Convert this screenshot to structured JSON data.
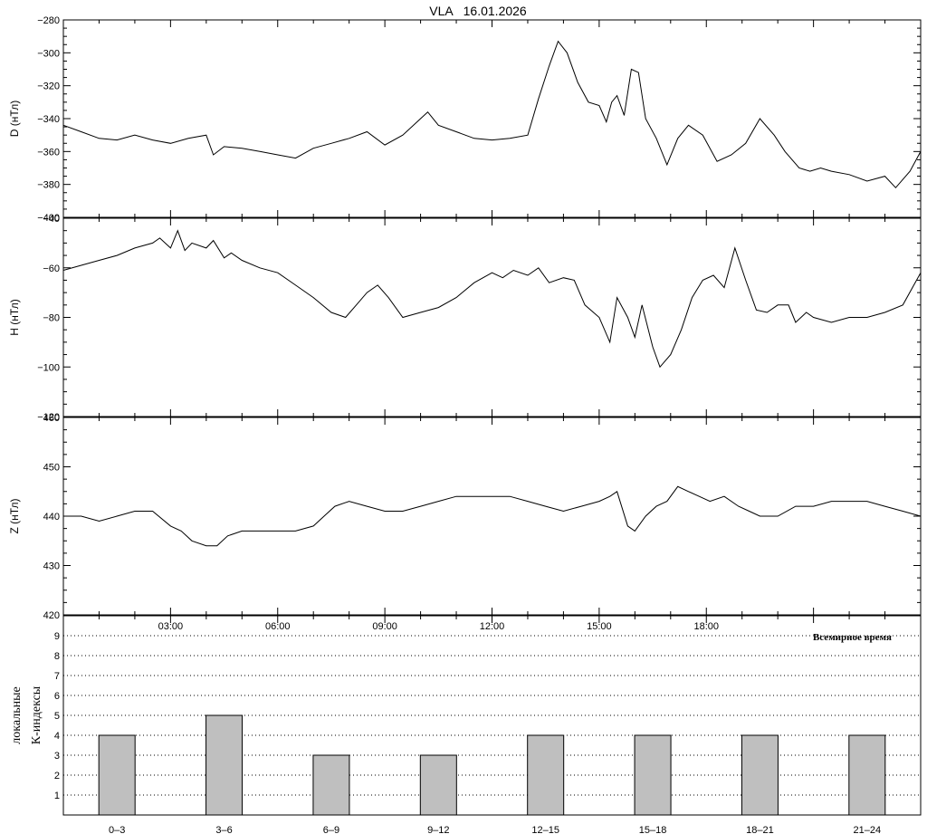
{
  "title": "VLA   16.01.2026",
  "colors": {
    "line": "#000000",
    "bar_fill": "#bfbfbf",
    "bar_stroke": "#000000",
    "background": "#ffffff"
  },
  "chart_data": [
    {
      "type": "line",
      "panel": "D",
      "ylabel": "D (нТл)",
      "ylim": [
        -400,
        -280
      ],
      "yticks": [
        -400,
        -380,
        -360,
        -340,
        -320,
        -300,
        -280
      ],
      "xlim": [
        0,
        24
      ],
      "x_unit": "hours UT",
      "series": [
        {
          "x": [
            0,
            0.5,
            1,
            1.5,
            2,
            2.5,
            3,
            3.5,
            4,
            4.2,
            4.5,
            5,
            5.5,
            6,
            6.5,
            7,
            7.5,
            8,
            8.5,
            9,
            9.5,
            10,
            10.2,
            10.5,
            11,
            11.5,
            12,
            12.5,
            13,
            13.3,
            13.6,
            13.85,
            14.1,
            14.4,
            14.7,
            15.0,
            15.2,
            15.35,
            15.5,
            15.7,
            15.9,
            16.1,
            16.3,
            16.6,
            16.9,
            17.2,
            17.5,
            17.9,
            18.3,
            18.7,
            19.1,
            19.5,
            19.9,
            20.2,
            20.6,
            20.9,
            21.2,
            21.5,
            22,
            22.5,
            23,
            23.3,
            23.7,
            24
          ],
          "y": [
            -344,
            -348,
            -352,
            -353,
            -350,
            -353,
            -355,
            -352,
            -350,
            -362,
            -357,
            -358,
            -360,
            -362,
            -364,
            -358,
            -355,
            -352,
            -348,
            -356,
            -350,
            -340,
            -336,
            -344,
            -348,
            -352,
            -353,
            -352,
            -350,
            -328,
            -308,
            -293,
            -300,
            -318,
            -330,
            -332,
            -342,
            -330,
            -326,
            -338,
            -310,
            -312,
            -340,
            -352,
            -368,
            -352,
            -344,
            -350,
            -366,
            -362,
            -355,
            -340,
            -350,
            -360,
            -370,
            -372,
            -370,
            -372,
            -374,
            -378,
            -375,
            -382,
            -372,
            -360
          ]
        }
      ]
    },
    {
      "type": "line",
      "panel": "H",
      "ylabel": "H (нТл)",
      "ylim": [
        -120,
        -40
      ],
      "yticks": [
        -120,
        -100,
        -80,
        -60,
        -40
      ],
      "xlim": [
        0,
        24
      ],
      "x_unit": "hours UT",
      "series": [
        {
          "x": [
            0,
            0.5,
            1,
            1.5,
            2,
            2.5,
            2.7,
            3.0,
            3.2,
            3.4,
            3.6,
            4.0,
            4.2,
            4.5,
            4.7,
            5,
            5.5,
            6,
            6.5,
            7,
            7.5,
            7.9,
            8.2,
            8.5,
            8.8,
            9.1,
            9.5,
            10,
            10.5,
            11,
            11.5,
            12,
            12.3,
            12.6,
            13,
            13.3,
            13.6,
            14,
            14.3,
            14.6,
            15,
            15.3,
            15.5,
            15.8,
            16,
            16.2,
            16.5,
            16.7,
            17,
            17.3,
            17.6,
            17.9,
            18.2,
            18.5,
            18.8,
            19.1,
            19.4,
            19.7,
            20,
            20.3,
            20.5,
            20.8,
            21,
            21.5,
            22,
            22.5,
            23,
            23.5,
            24
          ],
          "y": [
            -61,
            -59,
            -57,
            -55,
            -52,
            -50,
            -48,
            -52,
            -45,
            -53,
            -50,
            -52,
            -49,
            -56,
            -54,
            -57,
            -60,
            -62,
            -67,
            -72,
            -78,
            -80,
            -75,
            -70,
            -67,
            -72,
            -80,
            -78,
            -76,
            -72,
            -66,
            -62,
            -64,
            -61,
            -63,
            -60,
            -66,
            -64,
            -65,
            -75,
            -80,
            -90,
            -72,
            -80,
            -88,
            -75,
            -92,
            -100,
            -95,
            -85,
            -72,
            -65,
            -63,
            -68,
            -52,
            -65,
            -77,
            -78,
            -75,
            -75,
            -82,
            -78,
            -80,
            -82,
            -80,
            -80,
            -78,
            -75,
            -62
          ]
        }
      ]
    },
    {
      "type": "line",
      "panel": "Z",
      "ylabel": "Z (нТл)",
      "ylim": [
        420,
        460
      ],
      "yticks": [
        420,
        430,
        440,
        450,
        460
      ],
      "xlim": [
        0,
        24
      ],
      "x_unit": "hours UT",
      "series": [
        {
          "x": [
            0,
            0.5,
            1,
            1.5,
            2,
            2.5,
            3,
            3.3,
            3.6,
            4,
            4.3,
            4.6,
            5,
            5.5,
            6,
            6.5,
            7,
            7.3,
            7.6,
            8,
            8.5,
            9,
            9.5,
            10,
            10.5,
            11,
            11.5,
            12,
            12.5,
            13,
            13.5,
            14,
            14.5,
            15,
            15.3,
            15.5,
            15.8,
            16,
            16.3,
            16.6,
            16.9,
            17.2,
            17.5,
            17.8,
            18.1,
            18.5,
            18.9,
            19.2,
            19.5,
            19.8,
            20,
            20.5,
            21,
            21.5,
            22,
            22.5,
            23,
            23.5,
            24
          ],
          "y": [
            440,
            440,
            439,
            440,
            441,
            441,
            438,
            437,
            435,
            434,
            434,
            436,
            437,
            437,
            437,
            437,
            438,
            440,
            442,
            443,
            442,
            441,
            441,
            442,
            443,
            444,
            444,
            444,
            444,
            443,
            442,
            441,
            442,
            443,
            444,
            445,
            438,
            437,
            440,
            442,
            443,
            446,
            445,
            444,
            443,
            444,
            442,
            441,
            440,
            440,
            440,
            442,
            442,
            443,
            443,
            443,
            442,
            441,
            440
          ]
        }
      ]
    },
    {
      "type": "bar",
      "panel": "K",
      "ylabel_lines": [
        "локальные",
        "К-индексы"
      ],
      "categories": [
        "0–3",
        "3–6",
        "6–9",
        "9–12",
        "12–15",
        "15–18",
        "18–21",
        "21–24"
      ],
      "values": [
        4,
        5,
        3,
        3,
        4,
        4,
        4,
        4
      ],
      "ylim": [
        0,
        10
      ],
      "yticks": [
        1,
        2,
        3,
        4,
        5,
        6,
        7,
        8,
        9
      ],
      "grid": true
    }
  ],
  "time_axis": {
    "ticks": [
      "03:00",
      "06:00",
      "09:00",
      "12:00",
      "15:00",
      "18:00"
    ],
    "label": "Всемирное время"
  }
}
